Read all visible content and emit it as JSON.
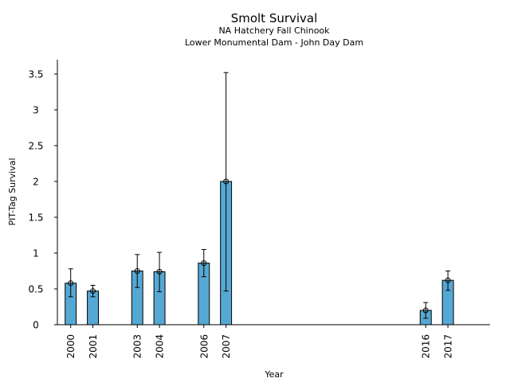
{
  "chart_data": {
    "type": "bar",
    "title": "Smolt Survival",
    "subtitle_lines": [
      "NA Hatchery Fall Chinook",
      "Lower Monumental Dam - John Day Dam"
    ],
    "xlabel": "Year",
    "ylabel": "PIT-Tag Survival",
    "x_range": [
      1999.4,
      2018.9
    ],
    "ylim": [
      0,
      3.7
    ],
    "y_ticks": [
      0,
      0.5,
      1,
      1.5,
      2,
      2.5,
      3,
      3.5
    ],
    "y_tick_labels": [
      "0",
      "0.5",
      "1",
      "1.5",
      "2",
      "2.5",
      "3",
      "3.5"
    ],
    "bar_width_years": 0.5,
    "points": [
      {
        "year": 2000,
        "label": "2000",
        "value": 0.58,
        "lower": 0.39,
        "upper": 0.78
      },
      {
        "year": 2001,
        "label": "2001",
        "value": 0.47,
        "lower": 0.39,
        "upper": 0.55
      },
      {
        "year": 2003,
        "label": "2003",
        "value": 0.75,
        "lower": 0.52,
        "upper": 0.98
      },
      {
        "year": 2004,
        "label": "2004",
        "value": 0.74,
        "lower": 0.46,
        "upper": 1.01
      },
      {
        "year": 2006,
        "label": "2006",
        "value": 0.86,
        "lower": 0.67,
        "upper": 1.05
      },
      {
        "year": 2007,
        "label": "2007",
        "value": 2.0,
        "lower": 0.47,
        "upper": 3.52
      },
      {
        "year": 2016,
        "label": "2016",
        "value": 0.2,
        "lower": 0.09,
        "upper": 0.31
      },
      {
        "year": 2017,
        "label": "2017",
        "value": 0.62,
        "lower": 0.48,
        "upper": 0.75
      }
    ],
    "colors": {
      "bar_fill": "#56a8d4",
      "bar_edge": "#000000",
      "axis": "#000000",
      "text": "#000000"
    }
  }
}
